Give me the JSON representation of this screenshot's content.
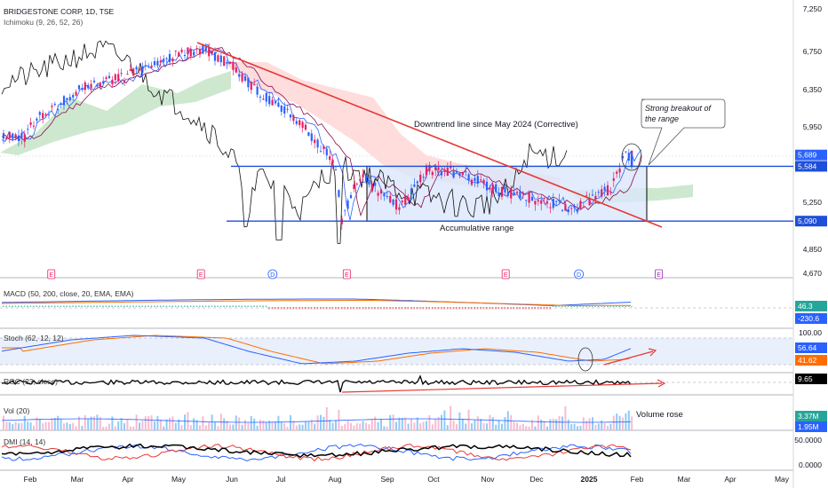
{
  "header": {
    "title": "BRIDGESTONE CORP, 1D, TSE",
    "indicator": "Ichimoku (9, 26, 52, 26)"
  },
  "panes": {
    "macd": "MACD (50, 200, close, 20, EMA, EMA)",
    "stoch": "Stoch (62, 12, 12)",
    "roc": "ROC (23, close)",
    "vol": "Vol (20)",
    "dmi": "DMI (14, 14)"
  },
  "colors": {
    "up": "#2962ff",
    "down": "#e91e63",
    "trend": "#e53935",
    "level": "#1e4fd8",
    "box_fill": "#dbe7fb",
    "cloud_green": "#c8e6c9",
    "cloud_red": "#ffd9d9"
  },
  "annotations": {
    "downtrend": "Downtrend line since May 2024 (Corrective)",
    "range": "Accumulative range",
    "breakout_line1": "Strong breakout of",
    "breakout_line2": "the range",
    "volume": "Volume rose"
  },
  "chart_data": {
    "type": "candlestick",
    "x_axis": [
      "Feb",
      "Mar",
      "Apr",
      "May",
      "Jun",
      "Jul",
      "Aug",
      "Sep",
      "Oct",
      "Nov",
      "Dec",
      "2025",
      "Feb",
      "Mar",
      "Apr",
      "May"
    ],
    "y_ticks": [
      7250,
      6750,
      6350,
      5950,
      5250,
      4850,
      4670
    ],
    "ylim": [
      4670,
      7250
    ],
    "levels": [
      5584,
      5090
    ],
    "price_tags": [
      {
        "label": "5,689",
        "value": 5689,
        "color": "#2962ff"
      },
      {
        "label": "5,584",
        "value": 5584,
        "color": "#1e4fd8"
      },
      {
        "label": "5,090",
        "value": 5090,
        "color": "#1e4fd8"
      }
    ],
    "price_path": [
      [
        "2024-01-25",
        5850
      ],
      [
        "2024-02-05",
        6050
      ],
      [
        "2024-02-20",
        6200
      ],
      [
        "2024-03-01",
        6350
      ],
      [
        "2024-03-15",
        6420
      ],
      [
        "2024-04-01",
        6500
      ],
      [
        "2024-04-15",
        6600
      ],
      [
        "2024-05-01",
        6720
      ],
      [
        "2024-05-15",
        6780
      ],
      [
        "2024-06-01",
        6600
      ],
      [
        "2024-06-15",
        6350
      ],
      [
        "2024-07-01",
        6150
      ],
      [
        "2024-07-15",
        5950
      ],
      [
        "2024-08-01",
        5600
      ],
      [
        "2024-08-05",
        5100
      ],
      [
        "2024-08-15",
        5500
      ],
      [
        "2024-09-01",
        5300
      ],
      [
        "2024-09-10",
        5200
      ],
      [
        "2024-09-25",
        5550
      ],
      [
        "2024-10-10",
        5550
      ],
      [
        "2024-10-25",
        5450
      ],
      [
        "2024-11-10",
        5350
      ],
      [
        "2024-11-25",
        5300
      ],
      [
        "2024-12-10",
        5250
      ],
      [
        "2024-12-20",
        5200
      ],
      [
        "2025-01-05",
        5300
      ],
      [
        "2025-01-15",
        5380
      ],
      [
        "2025-01-24",
        5689
      ]
    ],
    "events": [
      {
        "letter": "E",
        "date": "2024-02-14"
      },
      {
        "letter": "E",
        "date": "2024-05-14"
      },
      {
        "letter": "D",
        "date": "2024-06-26"
      },
      {
        "letter": "E",
        "date": "2024-08-08"
      },
      {
        "letter": "E",
        "date": "2024-11-12"
      },
      {
        "letter": "D",
        "date": "2024-12-26"
      },
      {
        "letter": "E",
        "date": "2025-02-14"
      }
    ],
    "macd": {
      "macd": 46.3,
      "signal": -230.6,
      "labels": [
        "46.3",
        "-230.6"
      ]
    },
    "stoch": {
      "k": 56.64,
      "d": 41.62,
      "labels": [
        "100.00",
        "56.64",
        "41.62"
      ]
    },
    "roc": {
      "value": 9.65,
      "label": "9.65"
    },
    "volume": {
      "label": "3.37M",
      "label2": "1.95M"
    },
    "dmi": {
      "labels": [
        "50.0000",
        "0.0000"
      ]
    }
  }
}
